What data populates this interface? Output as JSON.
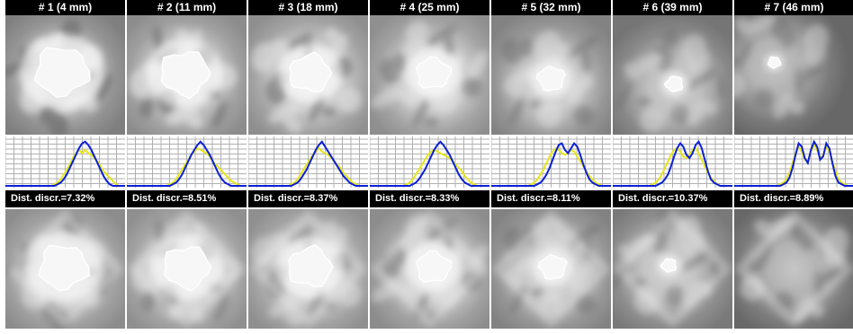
{
  "panels": [
    {
      "label": "# 1 (4 mm)",
      "dist": "Dist. discr.=7.32%",
      "top": {
        "bright": 0.7,
        "blob": 0.22,
        "rings": 0.9,
        "off": [
          -4,
          0
        ]
      },
      "bot": {
        "bright": 0.78,
        "blob": 0.2,
        "off": [
          -2,
          2
        ]
      }
    },
    {
      "label": "# 2 (11 mm)",
      "dist": "Dist. discr.=8.51%",
      "top": {
        "bright": 0.78,
        "blob": 0.2,
        "rings": 0.7,
        "off": [
          -2,
          2
        ]
      },
      "bot": {
        "bright": 0.8,
        "blob": 0.19,
        "off": [
          0,
          2
        ]
      }
    },
    {
      "label": "# 3 (18 mm)",
      "dist": "Dist. discr.=8.37%",
      "top": {
        "bright": 0.8,
        "blob": 0.17,
        "rings": 0.6,
        "off": [
          2,
          2
        ]
      },
      "bot": {
        "bright": 0.8,
        "blob": 0.18,
        "off": [
          2,
          2
        ]
      }
    },
    {
      "label": "# 4 (25 mm)",
      "dist": "Dist. discr.=8.33%",
      "top": {
        "bright": 0.8,
        "blob": 0.14,
        "rings": 0.4,
        "off": [
          4,
          2
        ]
      },
      "bot": {
        "bright": 0.78,
        "blob": 0.14,
        "off": [
          4,
          2
        ]
      }
    },
    {
      "label": "# 5 (32 mm)",
      "dist": "Dist. discr.=8.11%",
      "top": {
        "bright": 0.72,
        "blob": 0.11,
        "rings": 0.3,
        "off": [
          0,
          8
        ]
      },
      "bot": {
        "bright": 0.72,
        "blob": 0.11,
        "off": [
          2,
          2
        ]
      }
    },
    {
      "label": "# 6 (39 mm)",
      "dist": "Dist. discr.=10.37%",
      "top": {
        "bright": 0.64,
        "blob": 0.07,
        "rings": 0.2,
        "off": [
          2,
          14
        ]
      },
      "bot": {
        "bright": 0.66,
        "blob": 0.06,
        "off": [
          -4,
          0
        ]
      }
    },
    {
      "label": "# 7 (46 mm)",
      "dist": "Dist. discr.=8.89%",
      "top": {
        "bright": 0.55,
        "blob": 0.05,
        "rings": 0.2,
        "off": [
          -22,
          -10
        ]
      },
      "bot": {
        "bright": 0.55,
        "blob": 0.0,
        "off": [
          0,
          0
        ]
      }
    }
  ],
  "profiles": [
    {
      "blue": [
        0,
        0,
        0,
        0,
        0,
        0,
        0,
        0,
        0,
        0,
        0,
        0,
        0,
        0,
        0,
        0,
        0,
        2,
        4,
        8,
        14,
        22,
        30,
        38,
        46,
        52,
        54,
        50,
        44,
        36,
        28,
        20,
        12,
        6,
        2,
        0,
        0,
        0,
        0,
        0
      ],
      "yellow": [
        0,
        0,
        0,
        0,
        0,
        0,
        0,
        0,
        0,
        0,
        0,
        0,
        0,
        0,
        0,
        0,
        2,
        4,
        8,
        14,
        20,
        26,
        34,
        40,
        44,
        40,
        44,
        40,
        38,
        34,
        30,
        24,
        18,
        14,
        10,
        6,
        2,
        0,
        0,
        0
      ]
    },
    {
      "blue": [
        0,
        0,
        0,
        0,
        0,
        0,
        0,
        0,
        0,
        0,
        0,
        0,
        0,
        0,
        0,
        2,
        4,
        8,
        14,
        22,
        30,
        38,
        44,
        50,
        54,
        50,
        44,
        38,
        30,
        22,
        14,
        8,
        4,
        2,
        0,
        0,
        0,
        0,
        0,
        0
      ],
      "yellow": [
        0,
        0,
        0,
        0,
        0,
        0,
        0,
        0,
        0,
        0,
        0,
        0,
        0,
        0,
        2,
        4,
        8,
        14,
        20,
        26,
        32,
        38,
        42,
        46,
        44,
        42,
        40,
        36,
        30,
        26,
        22,
        18,
        14,
        10,
        6,
        4,
        2,
        0,
        0,
        0
      ]
    },
    {
      "blue": [
        0,
        0,
        0,
        0,
        0,
        0,
        0,
        0,
        0,
        0,
        0,
        0,
        0,
        0,
        0,
        2,
        4,
        8,
        14,
        20,
        28,
        36,
        44,
        50,
        54,
        48,
        42,
        36,
        30,
        24,
        18,
        12,
        8,
        4,
        2,
        0,
        0,
        0,
        0,
        0
      ],
      "yellow": [
        0,
        0,
        0,
        0,
        0,
        0,
        0,
        0,
        0,
        0,
        0,
        0,
        0,
        0,
        2,
        4,
        8,
        14,
        20,
        26,
        32,
        38,
        42,
        46,
        42,
        40,
        38,
        34,
        30,
        26,
        22,
        16,
        12,
        8,
        4,
        2,
        0,
        0,
        0,
        0
      ]
    },
    {
      "blue": [
        0,
        0,
        0,
        0,
        0,
        0,
        0,
        0,
        0,
        0,
        0,
        0,
        0,
        0,
        2,
        4,
        8,
        14,
        20,
        28,
        36,
        44,
        50,
        54,
        50,
        44,
        38,
        30,
        22,
        14,
        8,
        4,
        2,
        0,
        0,
        0,
        0,
        0,
        0,
        0
      ],
      "yellow": [
        0,
        0,
        0,
        0,
        0,
        0,
        0,
        0,
        0,
        0,
        0,
        0,
        2,
        4,
        8,
        14,
        20,
        26,
        32,
        38,
        42,
        44,
        42,
        40,
        38,
        36,
        34,
        30,
        26,
        22,
        18,
        12,
        8,
        4,
        2,
        0,
        0,
        0,
        0,
        0
      ]
    },
    {
      "blue": [
        0,
        0,
        0,
        0,
        0,
        0,
        0,
        0,
        0,
        0,
        0,
        0,
        0,
        0,
        0,
        2,
        4,
        8,
        14,
        22,
        32,
        42,
        50,
        52,
        44,
        40,
        46,
        52,
        48,
        38,
        26,
        16,
        8,
        4,
        2,
        0,
        0,
        0,
        0,
        0
      ],
      "yellow": [
        0,
        0,
        0,
        0,
        0,
        0,
        0,
        0,
        0,
        0,
        0,
        0,
        0,
        2,
        4,
        8,
        14,
        20,
        28,
        36,
        42,
        46,
        44,
        40,
        38,
        40,
        44,
        42,
        36,
        30,
        24,
        18,
        12,
        8,
        4,
        2,
        0,
        0,
        0,
        0
      ]
    },
    {
      "blue": [
        0,
        0,
        0,
        0,
        0,
        0,
        0,
        0,
        0,
        0,
        0,
        0,
        0,
        0,
        0,
        2,
        4,
        8,
        14,
        24,
        36,
        46,
        52,
        48,
        38,
        34,
        40,
        50,
        54,
        46,
        32,
        18,
        8,
        4,
        2,
        0,
        0,
        0,
        0,
        0
      ],
      "yellow": [
        0,
        0,
        0,
        0,
        0,
        0,
        0,
        0,
        0,
        0,
        0,
        0,
        0,
        2,
        4,
        8,
        14,
        22,
        30,
        38,
        44,
        46,
        42,
        36,
        34,
        38,
        44,
        46,
        40,
        32,
        24,
        16,
        10,
        6,
        2,
        0,
        0,
        0,
        0,
        0
      ]
    },
    {
      "blue": [
        0,
        0,
        0,
        0,
        0,
        0,
        0,
        0,
        0,
        0,
        0,
        0,
        0,
        0,
        0,
        0,
        2,
        4,
        10,
        22,
        38,
        52,
        48,
        34,
        28,
        44,
        54,
        48,
        32,
        36,
        52,
        46,
        28,
        12,
        4,
        2,
        0,
        0,
        0,
        0
      ],
      "yellow": [
        0,
        0,
        0,
        0,
        0,
        0,
        0,
        0,
        0,
        0,
        0,
        0,
        0,
        0,
        0,
        2,
        4,
        8,
        16,
        28,
        40,
        48,
        42,
        32,
        30,
        42,
        50,
        44,
        34,
        38,
        48,
        42,
        30,
        18,
        8,
        4,
        2,
        0,
        0,
        0
      ]
    }
  ],
  "colors": {
    "blue": "#0b1fd6",
    "yellow": "#e6e61a",
    "grid": "#b0b0b0",
    "header_bg": "#000000",
    "header_fg": "#ffffff"
  }
}
